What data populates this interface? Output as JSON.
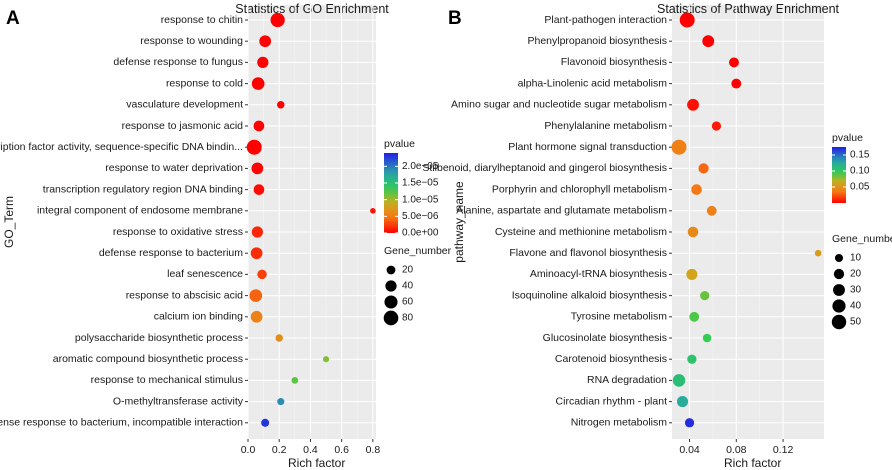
{
  "figure": {
    "panels": [
      "A",
      "B"
    ]
  },
  "chart_data": [
    {
      "panel": "A",
      "type": "scatter",
      "title": "Statistics of GO Enrichment",
      "xlabel": "Rich factor",
      "ylabel": "GO_Term",
      "xlim": [
        0,
        0.82
      ],
      "xticks": [
        0.0,
        0.2,
        0.4,
        0.6,
        0.8
      ],
      "xtick_labels": [
        "0.0",
        "0.2",
        "0.4",
        "0.6",
        "0.8"
      ],
      "color_legend": {
        "title": "pvalue",
        "range": [
          0,
          2.4e-05
        ],
        "ticks": [
          2e-05,
          1.5e-05,
          1e-05,
          5e-06,
          0.0
        ],
        "tick_labels": [
          "2.0e−05",
          "1.5e−05",
          "1.0e−05",
          "5.0e−06",
          "0.0e+00"
        ]
      },
      "size_legend": {
        "title": "Gene_number",
        "values": [
          20,
          40,
          60,
          80
        ],
        "labels": [
          "20",
          "40",
          "60",
          "80"
        ],
        "max": 85
      },
      "points": [
        {
          "term": "response to chitin",
          "rich_factor": 0.19,
          "gene_number": 75,
          "pvalue": 0.0
        },
        {
          "term": "response to wounding",
          "rich_factor": 0.11,
          "gene_number": 45,
          "pvalue": 0.0
        },
        {
          "term": "defense response to fungus",
          "rich_factor": 0.095,
          "gene_number": 40,
          "pvalue": 0.0
        },
        {
          "term": "response to cold",
          "rich_factor": 0.065,
          "gene_number": 55,
          "pvalue": 0.0
        },
        {
          "term": "vasculature development",
          "rich_factor": 0.21,
          "gene_number": 12,
          "pvalue": 0.0
        },
        {
          "term": "response to jasmonic acid",
          "rich_factor": 0.07,
          "gene_number": 35,
          "pvalue": 0.0
        },
        {
          "term": "transcription factor activity, sequence-specific DNA bindin...",
          "rich_factor": 0.04,
          "gene_number": 85,
          "pvalue": 0.0
        },
        {
          "term": "response to water deprivation",
          "rich_factor": 0.06,
          "gene_number": 45,
          "pvalue": 1e-07
        },
        {
          "term": "transcription regulatory region DNA binding",
          "rich_factor": 0.07,
          "gene_number": 35,
          "pvalue": 5e-07
        },
        {
          "term": "integral component of endosome membrane",
          "rich_factor": 0.8,
          "gene_number": 4,
          "pvalue": 8e-07
        },
        {
          "term": "response to oxidative stress",
          "rich_factor": 0.06,
          "gene_number": 40,
          "pvalue": 1.5e-06
        },
        {
          "term": "defense response to bacterium",
          "rich_factor": 0.055,
          "gene_number": 45,
          "pvalue": 1.8e-06
        },
        {
          "term": "leaf senescence",
          "rich_factor": 0.09,
          "gene_number": 25,
          "pvalue": 2.5e-06
        },
        {
          "term": "response to abscisic acid",
          "rich_factor": 0.05,
          "gene_number": 55,
          "pvalue": 4e-06
        },
        {
          "term": "calcium ion binding",
          "rich_factor": 0.055,
          "gene_number": 45,
          "pvalue": 5.5e-06
        },
        {
          "term": "polysaccharide biosynthetic process",
          "rich_factor": 0.2,
          "gene_number": 12,
          "pvalue": 6.5e-06
        },
        {
          "term": "aromatic compound biosynthetic process",
          "rich_factor": 0.5,
          "gene_number": 6,
          "pvalue": 1.1e-05
        },
        {
          "term": "response to mechanical stimulus",
          "rich_factor": 0.3,
          "gene_number": 8,
          "pvalue": 1.2e-05
        },
        {
          "term": "O-methyltransferase activity",
          "rich_factor": 0.21,
          "gene_number": 10,
          "pvalue": 1.9e-05
        },
        {
          "term": "defense response to bacterium, incompatible interaction",
          "rich_factor": 0.11,
          "gene_number": 15,
          "pvalue": 2.3e-05
        }
      ]
    },
    {
      "panel": "B",
      "type": "scatter",
      "title": "Statistics of Pathway Enrichment",
      "xlabel": "Rich factor",
      "ylabel": "pathway_name",
      "xlim": [
        0.025,
        0.155
      ],
      "xticks": [
        0.04,
        0.08,
        0.12
      ],
      "xtick_labels": [
        "0.04",
        "0.08",
        "0.12"
      ],
      "color_legend": {
        "title": "pvalue",
        "range": [
          0,
          0.175
        ],
        "ticks": [
          0.15,
          0.1,
          0.05
        ],
        "tick_labels": [
          "0.15",
          "0.10",
          "0.05"
        ]
      },
      "size_legend": {
        "title": "Gene_number",
        "values": [
          10,
          20,
          30,
          40,
          50
        ],
        "labels": [
          "10",
          "20",
          "30",
          "40",
          "50"
        ],
        "max": 55
      },
      "points": [
        {
          "term": "Plant-pathogen interaction",
          "rich_factor": 0.038,
          "gene_number": 55,
          "pvalue": 0.0
        },
        {
          "term": "Phenylpropanoid biosynthesis",
          "rich_factor": 0.056,
          "gene_number": 30,
          "pvalue": 0.0
        },
        {
          "term": "Flavonoid biosynthesis",
          "rich_factor": 0.078,
          "gene_number": 18,
          "pvalue": 0.0
        },
        {
          "term": "alpha-Linolenic acid metabolism",
          "rich_factor": 0.08,
          "gene_number": 18,
          "pvalue": 0.0
        },
        {
          "term": "Amino sugar and nucleotide sugar metabolism",
          "rich_factor": 0.043,
          "gene_number": 30,
          "pvalue": 0.005
        },
        {
          "term": "Phenylalanine metabolism",
          "rich_factor": 0.063,
          "gene_number": 15,
          "pvalue": 0.008
        },
        {
          "term": "Plant hormone signal transduction",
          "rich_factor": 0.031,
          "gene_number": 55,
          "pvalue": 0.04
        },
        {
          "term": "Stilbenoid, diarylheptanoid and gingerol biosynthesis",
          "rich_factor": 0.052,
          "gene_number": 20,
          "pvalue": 0.03
        },
        {
          "term": "Porphyrin and chlorophyll metabolism",
          "rich_factor": 0.046,
          "gene_number": 22,
          "pvalue": 0.035
        },
        {
          "term": "Alanine, aspartate and glutamate metabolism",
          "rich_factor": 0.059,
          "gene_number": 18,
          "pvalue": 0.04
        },
        {
          "term": "Cysteine and methionine metabolism",
          "rich_factor": 0.043,
          "gene_number": 22,
          "pvalue": 0.045
        },
        {
          "term": "Flavone and flavonol biosynthesis",
          "rich_factor": 0.15,
          "gene_number": 5,
          "pvalue": 0.055
        },
        {
          "term": "Aminoacyl-tRNA biosynthesis",
          "rich_factor": 0.042,
          "gene_number": 25,
          "pvalue": 0.06
        },
        {
          "term": "Isoquinoline alkaloid biosynthesis",
          "rich_factor": 0.053,
          "gene_number": 15,
          "pvalue": 0.085
        },
        {
          "term": "Tyrosine metabolism",
          "rich_factor": 0.044,
          "gene_number": 18,
          "pvalue": 0.09
        },
        {
          "term": "Glucosinolate biosynthesis",
          "rich_factor": 0.055,
          "gene_number": 12,
          "pvalue": 0.095
        },
        {
          "term": "Carotenoid biosynthesis",
          "rich_factor": 0.042,
          "gene_number": 15,
          "pvalue": 0.105
        },
        {
          "term": "RNA degradation",
          "rich_factor": 0.031,
          "gene_number": 35,
          "pvalue": 0.11
        },
        {
          "term": "Circadian rhythm - plant",
          "rich_factor": 0.034,
          "gene_number": 25,
          "pvalue": 0.125
        },
        {
          "term": "Nitrogen metabolism",
          "rich_factor": 0.04,
          "gene_number": 15,
          "pvalue": 0.17
        }
      ]
    }
  ]
}
